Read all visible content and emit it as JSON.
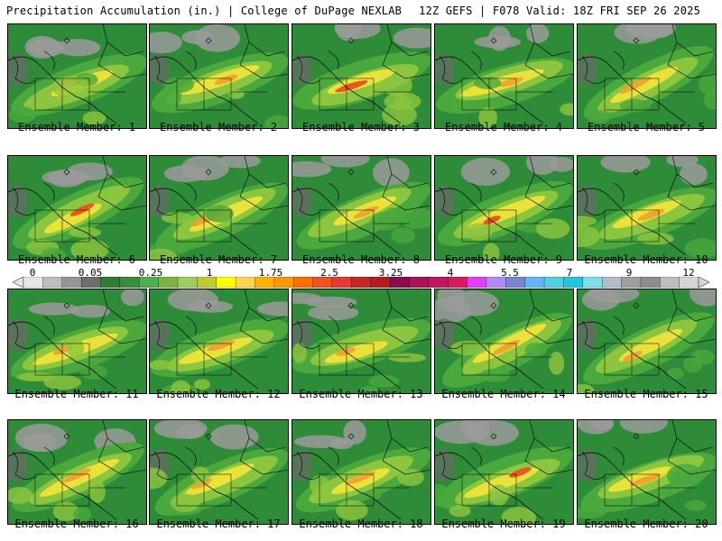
{
  "header": {
    "left": "Precipitation Accumulation (in.) | College of DuPage NEXLAB",
    "right": "12Z GEFS | F078 Valid: 18Z FRI SEP 26 2025"
  },
  "members": [
    "Ensemble Member: 1",
    "Ensemble Member: 2",
    "Ensemble Member: 3",
    "Ensemble Member: 4",
    "Ensemble Member: 5",
    "Ensemble Member: 6",
    "Ensemble Member: 7",
    "Ensemble Member: 8",
    "Ensemble Member: 9",
    "Ensemble Member: 10",
    "Ensemble Member: 11",
    "Ensemble Member: 12",
    "Ensemble Member: 13",
    "Ensemble Member: 14",
    "Ensemble Member: 15",
    "Ensemble Member: 16",
    "Ensemble Member: 17",
    "Ensemble Member: 18",
    "Ensemble Member: 19",
    "Ensemble Member: 20"
  ],
  "colorbar": {
    "labels": [
      "0",
      "0.05",
      "0.25",
      "1",
      "1.75",
      "2.5",
      "3.25",
      "4",
      "5.5",
      "7",
      "9",
      "12"
    ],
    "colors": [
      "#e6e6e6",
      "#bdbdbd",
      "#969696",
      "#6e6e6e",
      "#2e7d32",
      "#388e3c",
      "#4caf50",
      "#7cb342",
      "#9ccc65",
      "#c0ca33",
      "#ffff00",
      "#ffd54f",
      "#ffb300",
      "#ff9800",
      "#ff6f00",
      "#f4511e",
      "#e53935",
      "#c62828",
      "#b71c1c",
      "#880e4f",
      "#ad1457",
      "#c2185b",
      "#d81b60",
      "#e040fb",
      "#b388ff",
      "#7986cb",
      "#64b5f6",
      "#4dd0e1",
      "#26c6da",
      "#80deea",
      "#b0bec5",
      "#9e9e9e",
      "#8d8d8d",
      "#bdbdbd",
      "#d6d6d6"
    ]
  },
  "palette": {
    "base_green": "#2e8b38",
    "mid_green": "#4aa83c",
    "light_green": "#8cc63f",
    "yellow": "#e8e23a",
    "orange": "#f0a030",
    "red": "#e84a1e",
    "gray": "#9a9a9a",
    "dark_gray": "#6a6a6a",
    "border": "#000000"
  }
}
